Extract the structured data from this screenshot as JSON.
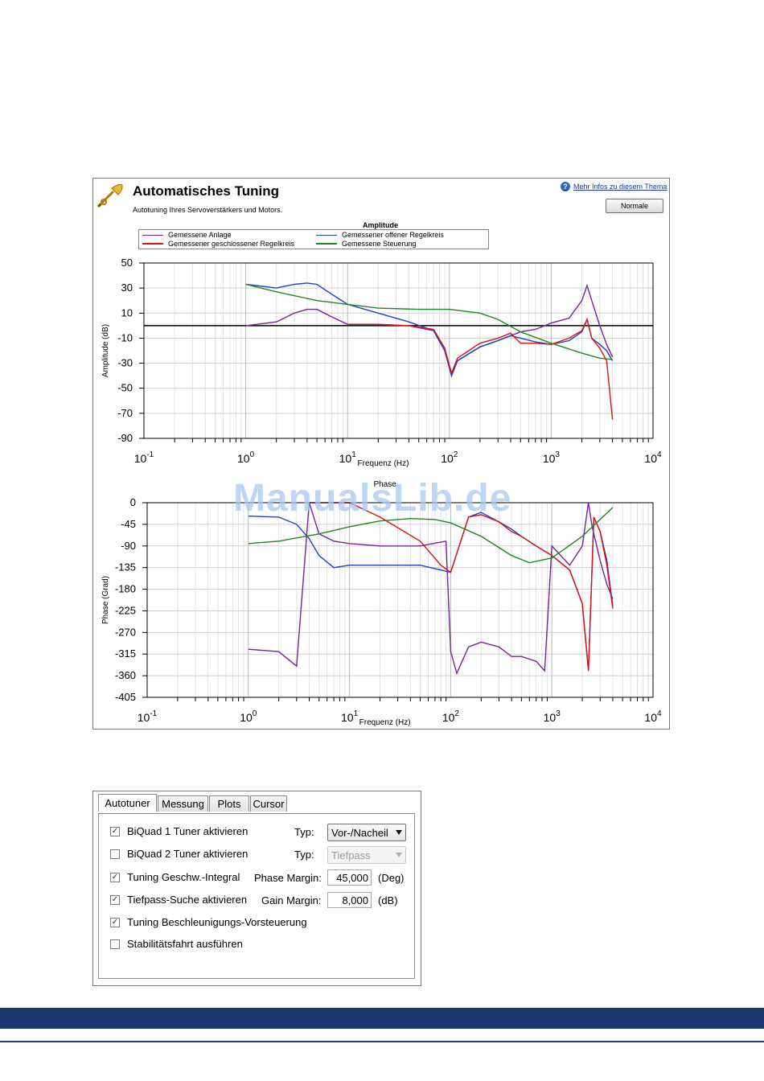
{
  "header": {
    "title": "Automatisches Tuning",
    "subtitle": "Autotuning Ihres Servoverstärkers und Motors.",
    "help_link": "Mehr Infos zu diesem Thema",
    "normal_button": "Normale"
  },
  "legend": {
    "title": "Amplitude",
    "items": [
      {
        "label": "Gemessene Anlage",
        "color": "#7b1fa2"
      },
      {
        "label": "Gemessener offener Regelkreis",
        "color": "#1f3fd0"
      },
      {
        "label": "Gemessener geschlossener Regelkreis",
        "color": "#e01010"
      },
      {
        "label": "Gemessene Steuerung",
        "color": "#1a8a1a"
      }
    ]
  },
  "watermark": "ManualsLib.de",
  "chart_data": [
    {
      "type": "line",
      "title": "",
      "xlabel": "Frequenz (Hz)",
      "ylabel": "Amplitude (dB)",
      "xscale": "log",
      "xlim": [
        0.1,
        10000
      ],
      "ylim": [
        -90,
        50
      ],
      "xticks": [
        "10-1",
        "100",
        "101",
        "102",
        "103",
        "104"
      ],
      "yticks": [
        "50",
        "30",
        "10",
        "-10",
        "-30",
        "-50",
        "-70",
        "-90"
      ],
      "grid": true,
      "reference_line_y": 0,
      "series": [
        {
          "name": "Gemessene Anlage",
          "color": "#7b1fa2",
          "x": [
            1,
            2,
            3,
            4,
            5,
            7,
            10,
            20,
            40,
            70,
            90,
            105,
            120,
            200,
            300,
            400,
            500,
            700,
            1000,
            1500,
            2000,
            2250,
            2500,
            3000,
            3500,
            4000
          ],
          "y": [
            0,
            3,
            10,
            13,
            13,
            7,
            1,
            1,
            0,
            -4,
            -20,
            -40,
            -28,
            -17,
            -12,
            -8,
            -5,
            -3,
            2,
            6,
            20,
            32,
            20,
            0,
            -15,
            -25
          ]
        },
        {
          "name": "Gemessener offener Regelkreis",
          "color": "#1f3fd0",
          "x": [
            1,
            2,
            3,
            4,
            5,
            7,
            10,
            20,
            40,
            70,
            90,
            105,
            120,
            200,
            300,
            400,
            500,
            700,
            1000,
            1500,
            2000,
            2250,
            2500,
            3000,
            3500,
            4000
          ],
          "y": [
            33,
            30,
            33,
            34,
            33,
            25,
            17,
            10,
            3,
            -4,
            -20,
            -40,
            -28,
            -17,
            -12,
            -8,
            -10,
            -13,
            -15,
            -12,
            -5,
            5,
            -10,
            -15,
            -20,
            -28
          ]
        },
        {
          "name": "Gemessener geschlossener Regelkreis",
          "color": "#e01010",
          "x": [
            10,
            20,
            40,
            70,
            90,
            105,
            120,
            200,
            300,
            400,
            500,
            700,
            1000,
            1500,
            2000,
            2250,
            2500,
            3000,
            3500,
            4000
          ],
          "y": [
            1,
            1,
            0,
            -3,
            -18,
            -38,
            -26,
            -14,
            -10,
            -6,
            -14,
            -14,
            -15,
            -10,
            -4,
            5,
            -10,
            -18,
            -28,
            -75
          ]
        },
        {
          "name": "Gemessene Steuerung",
          "color": "#1a8a1a",
          "x": [
            1,
            2,
            5,
            10,
            20,
            50,
            100,
            200,
            300,
            500,
            1000,
            2000,
            3000,
            4000
          ],
          "y": [
            33,
            27,
            20,
            17,
            14,
            13,
            13,
            10,
            5,
            -5,
            -14,
            -22,
            -26,
            -27
          ]
        }
      ]
    },
    {
      "type": "line",
      "title": "Phase",
      "xlabel": "Frequenz (Hz)",
      "ylabel": "Phase (Grad)",
      "xscale": "log",
      "xlim": [
        0.1,
        10000
      ],
      "ylim": [
        -405,
        0
      ],
      "xticks": [
        "10-1",
        "100",
        "101",
        "102",
        "103",
        "104"
      ],
      "yticks": [
        "0",
        "-45",
        "-90",
        "-135",
        "-180",
        "-225",
        "-270",
        "-315",
        "-360",
        "-405"
      ],
      "grid": true,
      "series": [
        {
          "name": "Gemessene Anlage",
          "color": "#7b1fa2",
          "x": [
            1,
            2,
            3,
            4,
            5,
            7,
            10,
            20,
            50,
            90,
            100,
            115,
            150,
            200,
            300,
            400,
            500,
            700,
            850,
            1000,
            1500,
            2000,
            2300,
            2500,
            3000,
            3500,
            4000
          ],
          "y": [
            -305,
            -310,
            -340,
            0,
            -65,
            -80,
            -85,
            -90,
            -90,
            -80,
            -310,
            -355,
            -300,
            -290,
            -300,
            -320,
            -320,
            -330,
            -350,
            -90,
            -130,
            -90,
            0,
            -50,
            -120,
            -170,
            -200
          ]
        },
        {
          "name": "Gemessener offener Regelkreis",
          "color": "#1f3fd0",
          "x": [
            1,
            2,
            3,
            4,
            5,
            7,
            10,
            20,
            50,
            80,
            100,
            150,
            200,
            300,
            400,
            500,
            700,
            1000,
            1500,
            2000,
            2300,
            2600,
            3000,
            3500,
            4000
          ],
          "y": [
            -28,
            -30,
            -45,
            -75,
            -110,
            -135,
            -130,
            -130,
            -130,
            -140,
            -145,
            -30,
            -20,
            -40,
            -55,
            -70,
            -90,
            -110,
            -140,
            -210,
            -350,
            -30,
            -60,
            -120,
            -215
          ]
        },
        {
          "name": "Gemessener geschlossener Regelkreis",
          "color": "#e01010",
          "x": [
            4,
            10,
            20,
            50,
            80,
            100,
            150,
            200,
            300,
            400,
            500,
            700,
            1000,
            1500,
            2000,
            2300,
            2600,
            3000,
            3500,
            4000
          ],
          "y": [
            0,
            0,
            -30,
            -80,
            -130,
            -145,
            -30,
            -25,
            -40,
            -60,
            -70,
            -90,
            -110,
            -140,
            -210,
            -350,
            -30,
            -60,
            -130,
            -220
          ]
        },
        {
          "name": "Gemessene Steuerung",
          "color": "#1a8a1a",
          "x": [
            1,
            2,
            5,
            10,
            20,
            40,
            70,
            100,
            200,
            400,
            600,
            1000,
            2000,
            3000,
            4000
          ],
          "y": [
            -85,
            -80,
            -65,
            -50,
            -38,
            -33,
            -35,
            -42,
            -70,
            -110,
            -125,
            -115,
            -70,
            -35,
            -10
          ]
        }
      ]
    }
  ],
  "tuner": {
    "tabs": [
      "Autotuner",
      "Messung",
      "Plots",
      "Cursor"
    ],
    "rows": [
      {
        "label": "BiQuad 1 Tuner aktivieren",
        "checked": true
      },
      {
        "label": "BiQuad 2 Tuner aktivieren",
        "checked": false
      },
      {
        "label": "Tuning Geschw.-Integral",
        "checked": true
      },
      {
        "label": "Tiefpass-Suche aktivieren",
        "checked": true
      },
      {
        "label": "Tuning Beschleunigungs-Vorsteuerung",
        "checked": true
      },
      {
        "label": "Stabilitätsfahrt ausführen",
        "checked": false
      }
    ],
    "typ_label": "Typ:",
    "typ1_value": "Vor-/Nacheil",
    "typ2_value": "Tiefpass",
    "phase_margin_label": "Phase Margin:",
    "phase_margin_value": "45,000",
    "phase_margin_unit": "(Deg)",
    "gain_margin_label": "Gain Margin:",
    "gain_margin_value": "8,000",
    "gain_margin_unit": "(dB)",
    "check_mark": "✓"
  }
}
